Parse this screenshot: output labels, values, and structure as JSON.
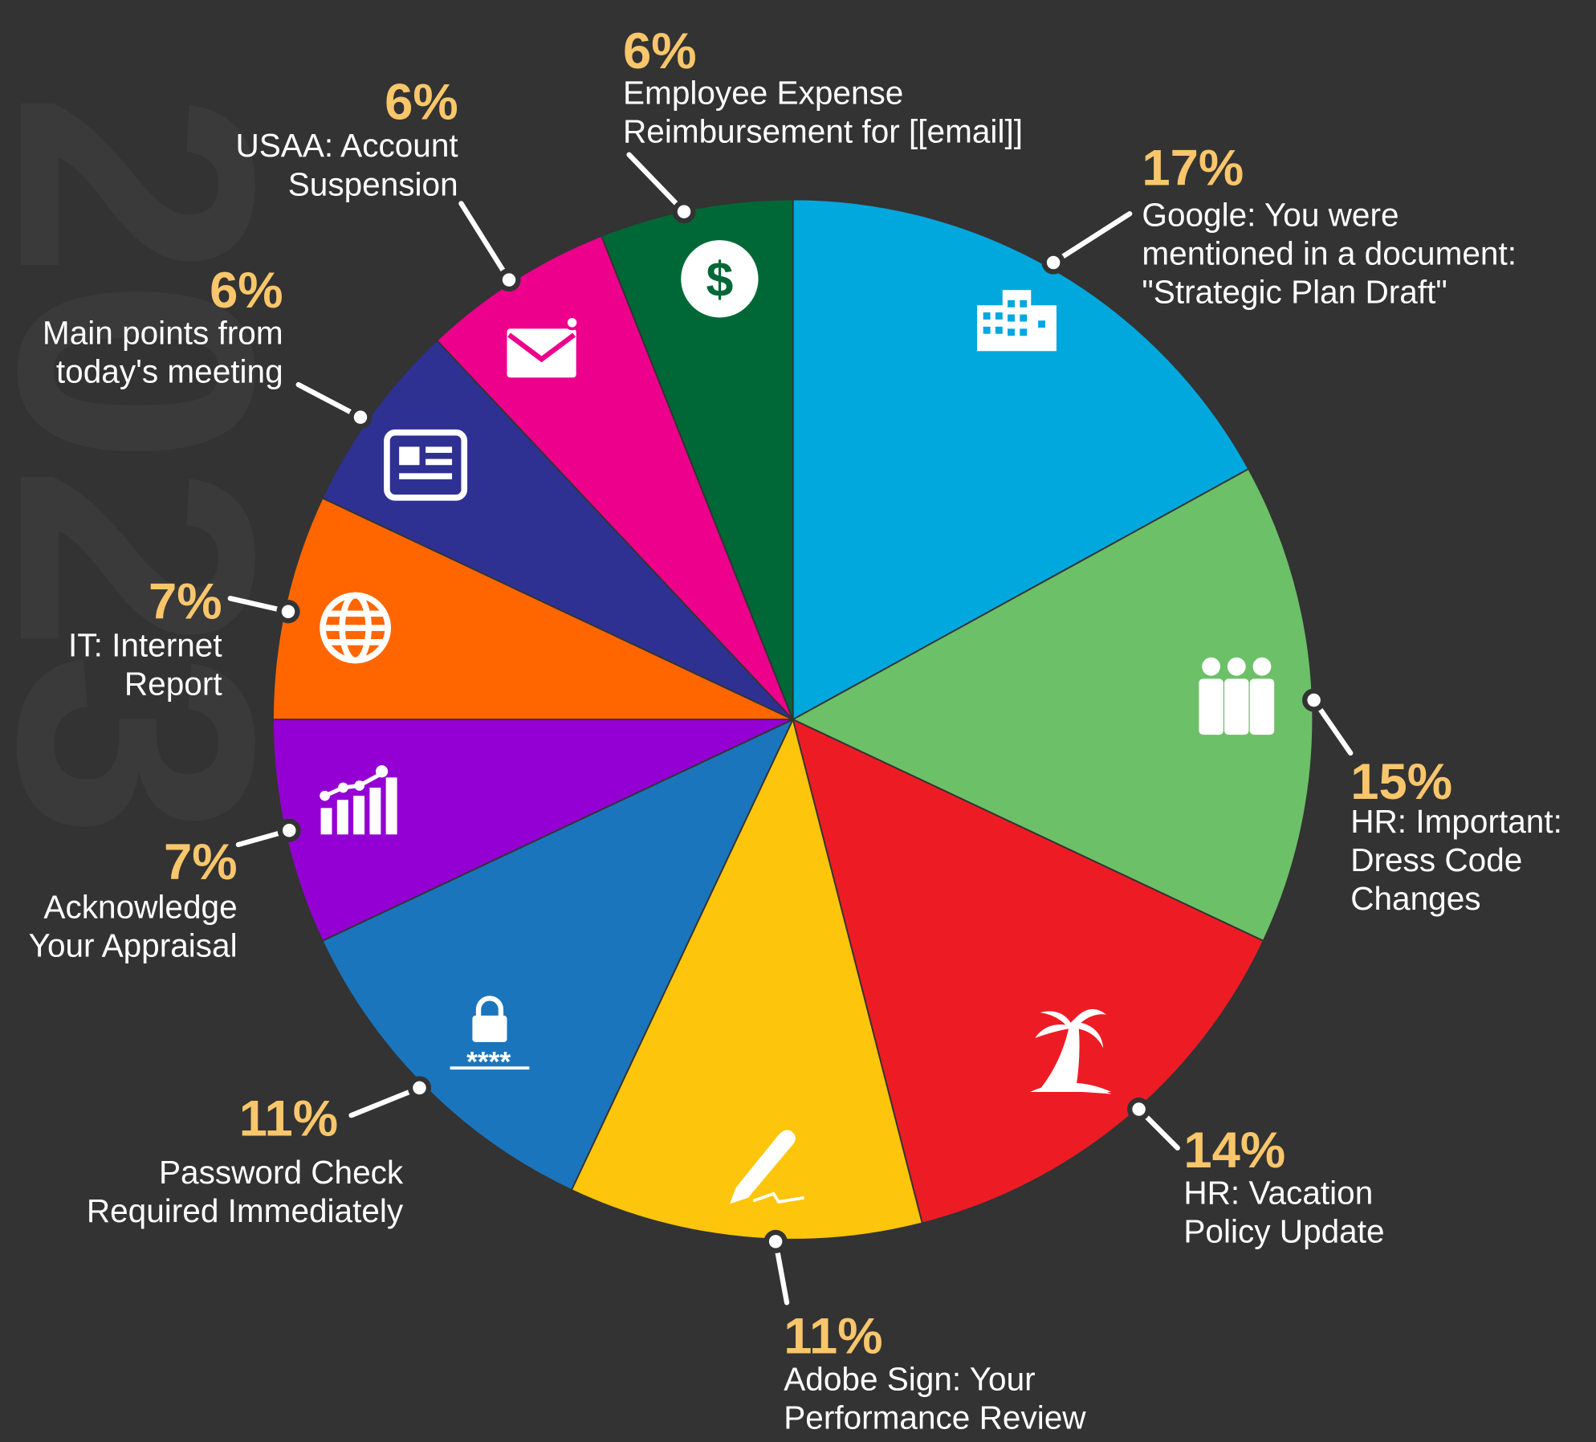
{
  "chart_data": {
    "type": "pie",
    "watermark": "2023",
    "categories": [
      [
        "Google: You were",
        "mentioned in a document:",
        "\"Strategic Plan Draft\""
      ],
      [
        "HR: Important:",
        "Dress Code",
        "Changes"
      ],
      [
        "HR: Vacation",
        "Policy Update"
      ],
      [
        "Adobe Sign: Your",
        "Performance Review"
      ],
      [
        "Password Check",
        "Required Immediately"
      ],
      [
        "Acknowledge",
        "Your Appraisal"
      ],
      [
        "IT: Internet",
        "Report"
      ],
      [
        "Main points from",
        "today's meeting"
      ],
      [
        "USAA: Account",
        "Suspension"
      ],
      [
        "Employee Expense",
        "Reimbursement for [[email]]"
      ]
    ],
    "values": [
      17,
      15,
      14,
      11,
      11,
      7,
      7,
      6,
      6,
      6
    ],
    "value_labels": [
      "17%",
      "15%",
      "14%",
      "11%",
      "11%",
      "7%",
      "7%",
      "6%",
      "6%",
      "6%"
    ],
    "colors": [
      "#00a8de",
      "#6cc067",
      "#ed1c24",
      "#fdc50c",
      "#1b75bc",
      "#9400d3",
      "#ff6600",
      "#2e3192",
      "#ec008c",
      "#006837"
    ]
  }
}
